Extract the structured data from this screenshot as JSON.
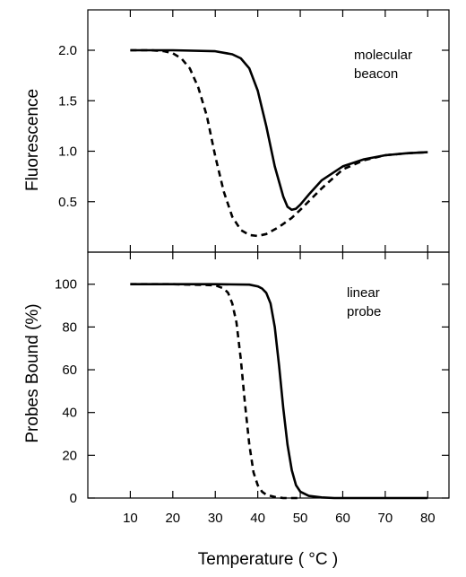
{
  "chart_data": [
    {
      "type": "line",
      "ylabel": "Fluorescence",
      "xlim": [
        0,
        85
      ],
      "ylim": [
        0,
        2.4
      ],
      "y_ticks": [
        0.5,
        1.0,
        1.5,
        2.0
      ],
      "y_tick_labels": [
        "0.5",
        "1.0",
        "1.5",
        "2.0"
      ],
      "annotation": [
        "molecular",
        "beacon"
      ],
      "series": [
        {
          "style": "solid",
          "x": [
            10,
            20,
            30,
            34,
            36,
            38,
            40,
            42,
            44,
            46,
            47,
            48,
            49,
            50,
            52,
            55,
            60,
            65,
            70,
            75,
            80
          ],
          "y": [
            2.0,
            2.0,
            1.99,
            1.96,
            1.92,
            1.82,
            1.6,
            1.25,
            0.85,
            0.55,
            0.45,
            0.42,
            0.43,
            0.47,
            0.57,
            0.71,
            0.85,
            0.92,
            0.96,
            0.98,
            0.99
          ]
        },
        {
          "style": "dashed",
          "x": [
            10,
            15,
            18,
            20,
            22,
            24,
            26,
            28,
            30,
            32,
            34,
            36,
            38,
            40,
            42,
            45,
            48,
            50,
            55,
            60,
            65,
            70,
            75,
            80
          ],
          "y": [
            2.0,
            2.0,
            1.99,
            1.97,
            1.92,
            1.82,
            1.63,
            1.35,
            0.95,
            0.6,
            0.35,
            0.22,
            0.17,
            0.16,
            0.18,
            0.25,
            0.34,
            0.42,
            0.63,
            0.82,
            0.91,
            0.96,
            0.98,
            0.99
          ]
        }
      ]
    },
    {
      "type": "line",
      "xlabel": "Temperature ( °C )",
      "ylabel": "Probes Bound (%)",
      "xlim": [
        0,
        85
      ],
      "ylim": [
        0,
        115
      ],
      "x_ticks": [
        10,
        20,
        30,
        40,
        50,
        60,
        70,
        80
      ],
      "x_tick_labels": [
        "10",
        "20",
        "30",
        "40",
        "50",
        "60",
        "70",
        "80"
      ],
      "y_ticks": [
        0,
        20,
        40,
        60,
        80,
        100
      ],
      "y_tick_labels": [
        "0",
        "20",
        "40",
        "60",
        "80",
        "100"
      ],
      "annotation": [
        "linear",
        "probe"
      ],
      "series": [
        {
          "style": "solid",
          "x": [
            10,
            20,
            30,
            38,
            40,
            41,
            42,
            43,
            44,
            45,
            46,
            47,
            48,
            49,
            50,
            52,
            55,
            58,
            60,
            70,
            80
          ],
          "y": [
            100,
            100,
            100,
            99.8,
            99,
            98,
            96,
            91,
            80,
            62,
            42,
            25,
            13,
            6,
            3,
            1,
            0.3,
            0,
            0,
            0,
            0
          ]
        },
        {
          "style": "dashed",
          "x": [
            10,
            20,
            30,
            32,
            33,
            34,
            35,
            36,
            37,
            38,
            39,
            40,
            41,
            42,
            44,
            46,
            48,
            50
          ],
          "y": [
            100,
            100,
            99.5,
            98,
            96,
            91,
            82,
            65,
            44,
            25,
            12,
            6,
            3,
            1.5,
            0.5,
            0,
            0,
            0
          ]
        }
      ]
    }
  ]
}
